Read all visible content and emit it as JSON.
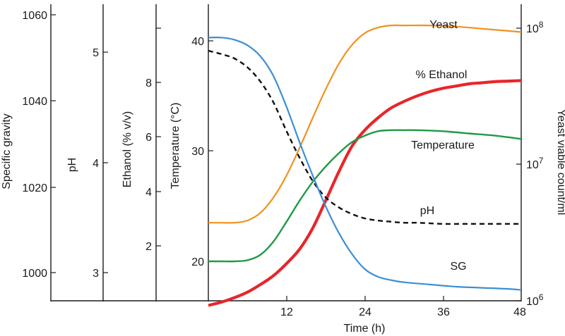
{
  "chart_data": {
    "type": "line",
    "title": "",
    "xlabel": "Time (h)",
    "xlim": [
      0,
      48
    ],
    "x_ticks": [
      "12",
      "24",
      "36",
      "48"
    ],
    "axes": {
      "specific_gravity": {
        "label": "Specific gravity",
        "ticks": [
          "1060",
          "1040",
          "1020",
          "1000"
        ]
      },
      "ph": {
        "label": "pH",
        "ticks": [
          "5",
          "4",
          "3"
        ]
      },
      "ethanol": {
        "label": "Ethanol (% v/v)",
        "ticks": [
          "8",
          "6",
          "4",
          "2"
        ]
      },
      "temperature": {
        "label": "Temperature (°C)",
        "ticks": [
          "40",
          "30",
          "20"
        ],
        "ylim": [
          16,
          42.5
        ]
      },
      "yeast": {
        "label": "Yeast viable count/ml",
        "ticks": [
          "10",
          "10",
          "10"
        ],
        "exponents": [
          "8",
          "7",
          "6"
        ]
      }
    },
    "series": [
      {
        "name": "Yeast",
        "label": "Yeast",
        "color": "#f0921d",
        "style": "solid",
        "x": [
          0,
          2,
          4,
          6,
          8,
          10,
          12,
          14,
          16,
          18,
          20,
          22,
          24,
          26,
          28,
          30,
          34,
          38,
          42,
          46,
          48
        ],
        "y": [
          23.5,
          23.5,
          23.5,
          23.7,
          24.4,
          25.8,
          27.8,
          30.3,
          33.0,
          35.6,
          37.9,
          39.6,
          40.7,
          41.2,
          41.4,
          41.4,
          41.4,
          41.3,
          41.1,
          40.9,
          40.8
        ]
      },
      {
        "name": "% Ethanol",
        "label": "% Ethanol",
        "color": "#e8262a",
        "style": "solid",
        "x": [
          0,
          2,
          4,
          6,
          8,
          10,
          12,
          14,
          16,
          18,
          20,
          22,
          24,
          26,
          28,
          30,
          32,
          34,
          36,
          38,
          40,
          42,
          44,
          46,
          48
        ],
        "y": [
          16,
          16.3,
          16.7,
          17.2,
          17.9,
          18.7,
          19.8,
          21.1,
          23.0,
          25.5,
          28.1,
          30.4,
          31.9,
          33.0,
          33.9,
          34.5,
          35.0,
          35.4,
          35.7,
          35.9,
          36.1,
          36.2,
          36.3,
          36.35,
          36.4
        ]
      },
      {
        "name": "Temperature",
        "label": "Temperature",
        "color": "#1e9a45",
        "style": "solid",
        "x": [
          0,
          2,
          4,
          6,
          8,
          10,
          12,
          14,
          16,
          18,
          20,
          22,
          24,
          26,
          28,
          30,
          32,
          36,
          40,
          44,
          48
        ],
        "y": [
          20.0,
          20.0,
          20.0,
          20.1,
          20.6,
          21.8,
          23.6,
          25.5,
          27.2,
          28.6,
          29.8,
          30.8,
          31.4,
          31.8,
          31.9,
          31.9,
          31.9,
          31.8,
          31.6,
          31.4,
          31.1
        ]
      },
      {
        "name": "pH",
        "label": "pH",
        "color": "#111111",
        "style": "dashed",
        "x": [
          0,
          2,
          4,
          6,
          8,
          10,
          12,
          14,
          16,
          18,
          20,
          22,
          24,
          26,
          28,
          30,
          32,
          36,
          40,
          44,
          48
        ],
        "y": [
          39.1,
          38.8,
          38.4,
          37.6,
          36.3,
          34.4,
          31.8,
          29.4,
          27.3,
          25.8,
          24.9,
          24.3,
          23.9,
          23.7,
          23.6,
          23.5,
          23.5,
          23.4,
          23.4,
          23.4,
          23.4
        ]
      },
      {
        "name": "SG",
        "label": "SG",
        "color": "#3b8fd4",
        "style": "solid",
        "x": [
          0,
          2,
          4,
          6,
          8,
          10,
          12,
          14,
          16,
          18,
          20,
          22,
          24,
          26,
          28,
          30,
          34,
          38,
          42,
          46,
          48
        ],
        "y": [
          40.3,
          40.3,
          40.1,
          39.6,
          38.6,
          36.8,
          34.0,
          30.8,
          27.8,
          25.0,
          22.6,
          20.7,
          19.3,
          18.6,
          18.3,
          18.1,
          17.9,
          17.7,
          17.6,
          17.5,
          17.4
        ]
      }
    ]
  }
}
